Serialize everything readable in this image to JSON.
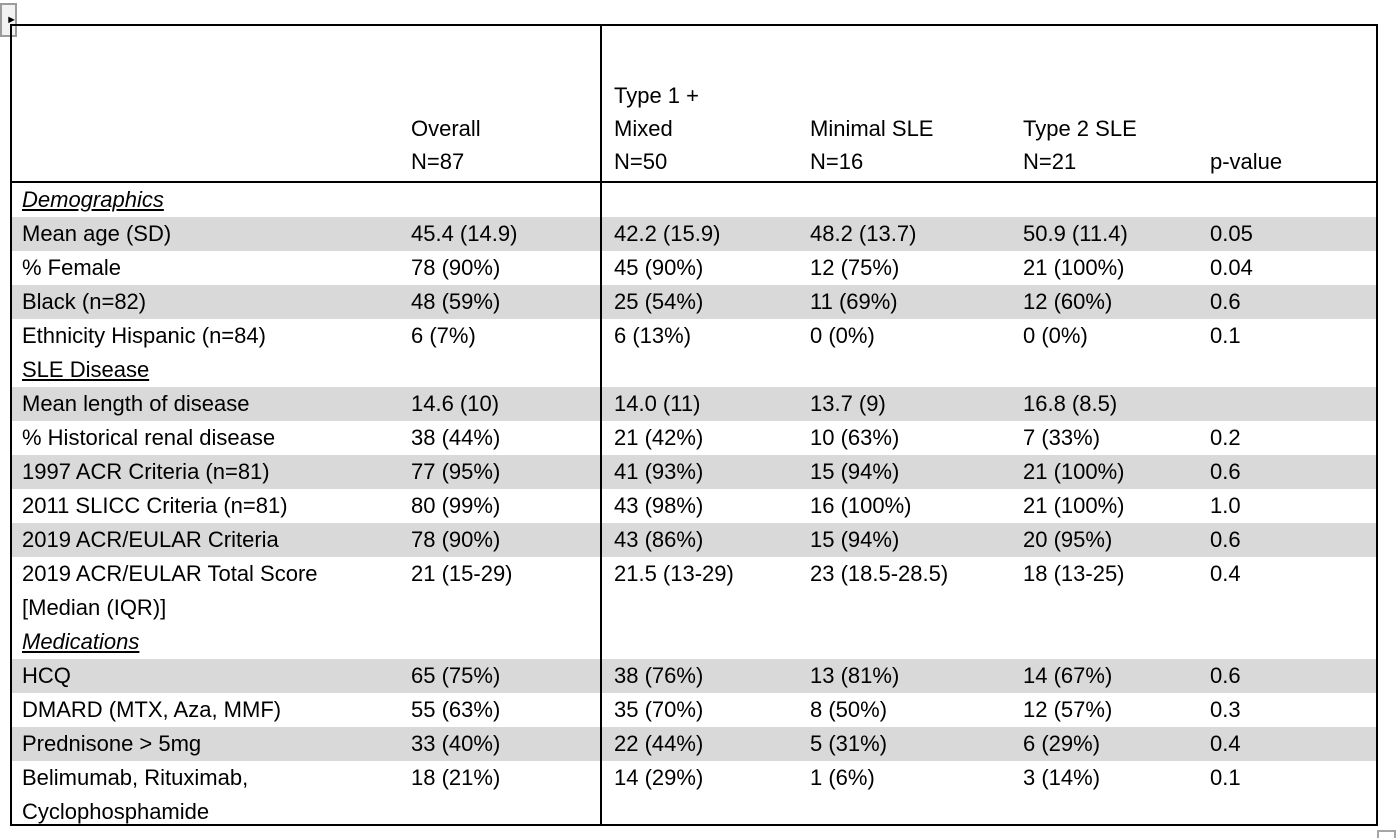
{
  "page": {
    "anchor_icon": "►"
  },
  "colors": {
    "row_shading": "#d9d9d9",
    "table_border": "#000000",
    "text": "#000000",
    "handle_border": "#a6a6a6"
  },
  "table": {
    "header": {
      "label": "",
      "overall": [
        "Overall",
        "N=87"
      ],
      "type1_mixed": [
        "Type 1 +",
        "Mixed",
        "N=50"
      ],
      "minimal_sle": [
        "Minimal SLE",
        "N=16"
      ],
      "type2_sle": [
        "Type 2 SLE",
        "N=21"
      ],
      "pvalue": "p-value"
    },
    "rows": [
      {
        "type": "section",
        "label": "Demographics",
        "italic": true,
        "shaded": false
      },
      {
        "type": "data",
        "label": "Mean age (SD)",
        "shaded": true,
        "values": [
          "45.4 (14.9)",
          "42.2 (15.9)",
          "48.2 (13.7)",
          "50.9 (11.4)",
          "0.05"
        ]
      },
      {
        "type": "data",
        "label": "% Female",
        "shaded": false,
        "values": [
          "78 (90%)",
          "45 (90%)",
          "12 (75%)",
          "21 (100%)",
          "0.04"
        ]
      },
      {
        "type": "data",
        "label": "Black (n=82)",
        "shaded": true,
        "values": [
          "48 (59%)",
          "25 (54%)",
          "11 (69%)",
          "12 (60%)",
          "0.6"
        ]
      },
      {
        "type": "data",
        "label": "Ethnicity Hispanic (n=84)",
        "shaded": false,
        "values": [
          "6 (7%)",
          "6 (13%)",
          "0 (0%)",
          "0 (0%)",
          "0.1"
        ]
      },
      {
        "type": "section",
        "label": "SLE Disease",
        "italic": false,
        "shaded": false
      },
      {
        "type": "data",
        "label": "Mean length of disease",
        "shaded": true,
        "values": [
          "14.6 (10)",
          "14.0 (11)",
          "13.7 (9)",
          "16.8 (8.5)",
          ""
        ]
      },
      {
        "type": "data",
        "label": "% Historical renal disease",
        "shaded": false,
        "values": [
          "38 (44%)",
          "21 (42%)",
          "10 (63%)",
          "7 (33%)",
          "0.2"
        ]
      },
      {
        "type": "data",
        "label": "1997 ACR Criteria (n=81)",
        "shaded": true,
        "values": [
          "77 (95%)",
          "41 (93%)",
          "15 (94%)",
          "21 (100%)",
          "0.6"
        ]
      },
      {
        "type": "data",
        "label": "2011 SLICC Criteria (n=81)",
        "shaded": false,
        "values": [
          "80 (99%)",
          "43 (98%)",
          "16 (100%)",
          "21 (100%)",
          "1.0"
        ]
      },
      {
        "type": "data",
        "label": "2019 ACR/EULAR Criteria",
        "shaded": true,
        "values": [
          "78 (90%)",
          "43 (86%)",
          "15 (94%)",
          "20 (95%)",
          "0.6"
        ]
      },
      {
        "type": "data",
        "label": "2019 ACR/EULAR Total Score",
        "label2": "[Median (IQR)]",
        "shaded": false,
        "values": [
          "21 (15-29)",
          "21.5 (13-29)",
          "23 (18.5-28.5)",
          "18 (13-25)",
          "0.4"
        ]
      },
      {
        "type": "section",
        "label": "Medications",
        "italic": true,
        "shaded": false
      },
      {
        "type": "data",
        "label": "HCQ",
        "shaded": true,
        "values": [
          "65 (75%)",
          "38 (76%)",
          "13 (81%)",
          "14 (67%)",
          "0.6"
        ]
      },
      {
        "type": "data",
        "label": "DMARD (MTX, Aza, MMF)",
        "shaded": false,
        "values": [
          "55 (63%)",
          "35 (70%)",
          "8 (50%)",
          "12 (57%)",
          "0.3"
        ]
      },
      {
        "type": "data",
        "label": "Prednisone > 5mg",
        "shaded": true,
        "values": [
          "33 (40%)",
          "22 (44%)",
          "5 (31%)",
          "6 (29%)",
          "0.4"
        ]
      },
      {
        "type": "data",
        "label": "Belimumab, Rituximab,",
        "label2": "Cyclophosphamide",
        "shaded": false,
        "values": [
          "18 (21%)",
          "14 (29%)",
          "1 (6%)",
          "3 (14%)",
          "0.1"
        ]
      }
    ]
  }
}
